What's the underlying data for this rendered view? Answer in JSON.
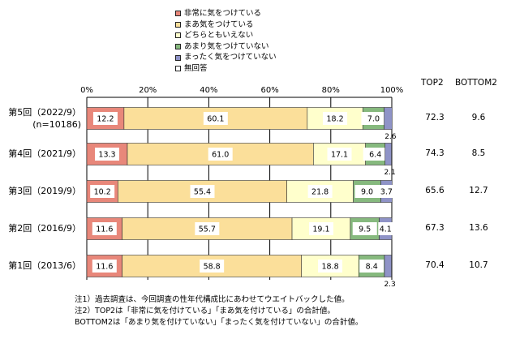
{
  "legend": [
    {
      "label": "非常に気をつけている",
      "color": "#e8877a"
    },
    {
      "label": "まあ気をつけている",
      "color": "#fbdf9a"
    },
    {
      "label": "どちらともいえない",
      "color": "#ffffcc"
    },
    {
      "label": "あまり気をつけていない",
      "color": "#86b97e"
    },
    {
      "label": "まったく気をつけていない",
      "color": "#8f93c7"
    },
    {
      "label": "無回答",
      "color": "#ffffff"
    }
  ],
  "columns": {
    "top2": "TOP2",
    "bottom2": "BOTTOM2"
  },
  "notes": [
    "注1）過去調査は、今回調査の性年代構成比にあわせてウエイトバックした値。",
    "注2）TOP2は「非常に気を付けている」「まあ気を付けている」の合計値。",
    "BOTTOM2は「あまり気を付けていない」「まったく気を付けていない」の合計値。"
  ],
  "chart_data": {
    "type": "bar",
    "orientation": "horizontal",
    "stacked": true,
    "xlim": [
      0,
      100
    ],
    "ticks": [
      "0%",
      "20%",
      "40%",
      "60%",
      "80%",
      "100%"
    ],
    "categories": [
      {
        "line1": "第5回（2022/9）",
        "line2": "(n=10186)"
      },
      {
        "line1": "第4回（2021/9）",
        "line2": ""
      },
      {
        "line1": "第3回（2019/9）",
        "line2": ""
      },
      {
        "line1": "第2回（2016/9）",
        "line2": ""
      },
      {
        "line1": "第1回（2013/6）",
        "line2": ""
      }
    ],
    "series": [
      {
        "name": "非常に気をつけている",
        "values": [
          12.2,
          13.3,
          10.2,
          11.6,
          11.6
        ]
      },
      {
        "name": "まあ気をつけている",
        "values": [
          60.1,
          61.0,
          55.4,
          55.7,
          58.8
        ]
      },
      {
        "name": "どちらともいえない",
        "values": [
          18.2,
          17.1,
          21.8,
          19.1,
          18.8
        ]
      },
      {
        "name": "あまり気をつけていない",
        "values": [
          7.0,
          6.4,
          9.0,
          9.5,
          8.4
        ]
      },
      {
        "name": "まったく気をつけていない",
        "values": [
          2.6,
          2.1,
          3.7,
          4.1,
          2.3
        ]
      },
      {
        "name": "無回答",
        "values": [
          0,
          0,
          0,
          0,
          0
        ]
      }
    ],
    "top2": [
      "72.3",
      "74.3",
      "65.6",
      "67.3",
      "70.4"
    ],
    "bottom2": [
      "9.6",
      "8.5",
      "12.7",
      "13.6",
      "10.7"
    ]
  }
}
